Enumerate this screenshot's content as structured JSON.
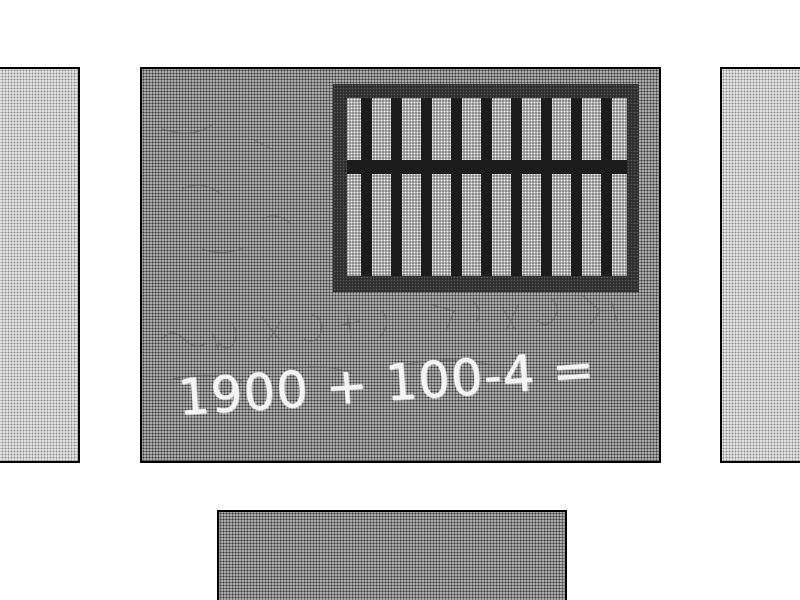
{
  "scene": {
    "center_panel": {
      "chalk_text": "1900 + 100-4 =",
      "window": {
        "bar_count": 9
      }
    },
    "left_panel": {},
    "right_panel": {},
    "bottom_panel": {}
  },
  "colors": {
    "background": "#ffffff",
    "border": "#000000",
    "wall_gray": "#8c8c8c",
    "bar_dark": "#1c1c1c",
    "chalk": "#f4f4f4"
  }
}
